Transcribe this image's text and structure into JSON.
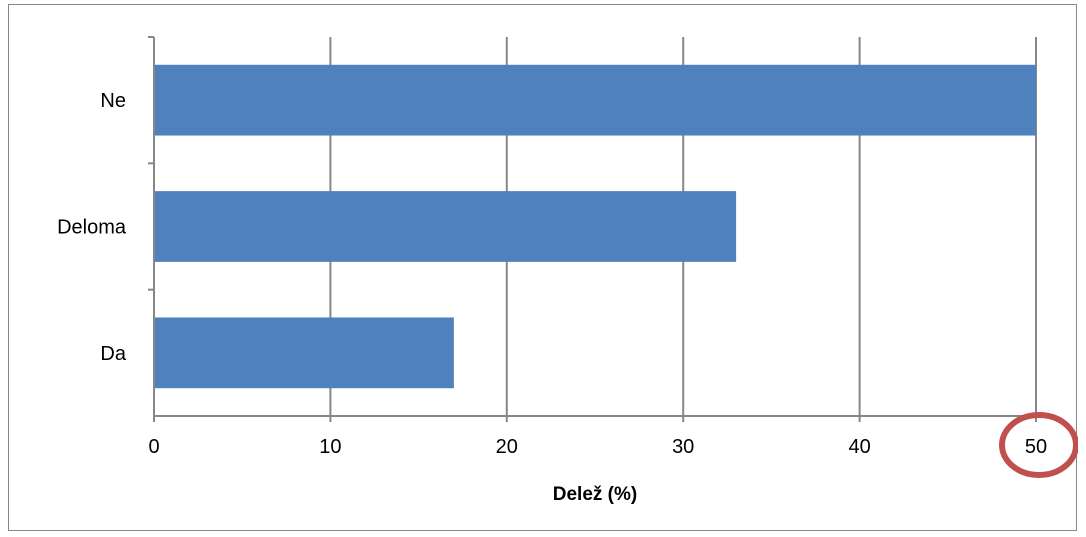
{
  "chart_data": {
    "type": "bar",
    "orientation": "horizontal",
    "categories": [
      "Da",
      "Deloma",
      "Ne"
    ],
    "values": [
      17,
      33,
      50
    ],
    "title": "",
    "xlabel": "Delež (%)",
    "ylabel": "",
    "xlim": [
      0,
      50
    ],
    "x_ticks": [
      0,
      10,
      20,
      30,
      40,
      50
    ],
    "grid": true,
    "legend": "none",
    "annotation": {
      "type": "circle",
      "target": "x-tick 50",
      "color": "#c0504d"
    },
    "colors": {
      "bar": "#4f81bd",
      "grid": "#878787",
      "annotation": "#c0504d"
    }
  }
}
